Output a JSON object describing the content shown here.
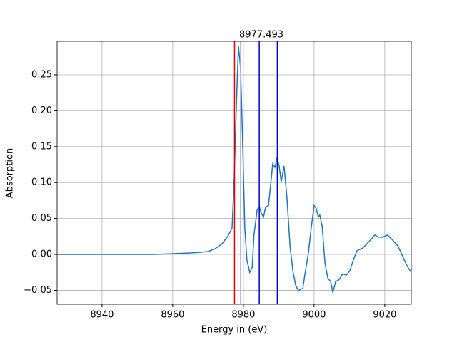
{
  "chart_data": {
    "type": "line",
    "title": "8977.493",
    "x_label": "Energy in (eV)",
    "y_label": "Absorption",
    "series": [
      {
        "color": "#1f77b4",
        "x": [
          8927.3,
          8935,
          8940,
          8945,
          8950,
          8955,
          8960,
          8965,
          8968,
          8970,
          8972,
          8974,
          8975.8,
          8976.8,
          8977.4,
          8978.0,
          8978.6,
          8979.2,
          8979.8,
          8980.4,
          8981.0,
          8981.8,
          8982.5,
          8983.0,
          8983.9,
          8984.5,
          8985.1,
          8985.7,
          8986.3,
          8987.1,
          8987.7,
          8988.3,
          8988.9,
          8989.5,
          8990.1,
          8990.7,
          8991.5,
          8992.3,
          8993.2,
          8994.0,
          8994.8,
          8995.6,
          8996.2,
          8996.8,
          8997.4,
          8998.4,
          8999.2,
          9000.0,
          9000.6,
          9001.2,
          9001.6,
          9002.3,
          9003.1,
          9003.9,
          9004.7,
          9005.3,
          9006.1,
          9007.1,
          9008.1,
          9009.1,
          9010.1,
          9011.1,
          9012.1,
          9013.8,
          9015.4,
          9017.2,
          9018.2,
          9019.4,
          9020.8,
          9022.2,
          9023.7,
          9025.1,
          9026.3,
          9027.5
        ],
        "values": [
          0,
          0,
          0,
          0,
          0,
          0,
          0.001,
          0.002,
          0.003,
          0.004,
          0.008,
          0.015,
          0.027,
          0.037,
          0.106,
          0.205,
          0.29,
          0.26,
          0.156,
          0.037,
          -0.008,
          -0.025,
          -0.018,
          0.027,
          0.062,
          0.066,
          0.057,
          0.052,
          0.066,
          0.068,
          0.096,
          0.126,
          0.121,
          0.134,
          0.124,
          0.101,
          0.123,
          0.081,
          0.012,
          -0.023,
          -0.043,
          -0.051,
          -0.048,
          -0.048,
          -0.028,
          0.002,
          0.037,
          0.068,
          0.064,
          0.052,
          0.055,
          0.039,
          -0.013,
          -0.033,
          -0.038,
          -0.053,
          -0.038,
          -0.035,
          -0.027,
          -0.029,
          -0.023,
          -0.008,
          0.005,
          0.009,
          0.017,
          0.027,
          0.024,
          0.024,
          0.027,
          0.02,
          0.012,
          -0.003,
          -0.016,
          -0.025
        ]
      }
    ],
    "vlines": [
      {
        "x": 8977.493,
        "color": "#e00000"
      },
      {
        "x": 8979.2,
        "color": "#b4a8d8"
      },
      {
        "x": 8984.5,
        "color": "#0000cc"
      },
      {
        "x": 8989.6,
        "color": "#0000cc"
      }
    ],
    "xlim": [
      8927.3,
      9027.5
    ],
    "ylim": [
      -0.0694,
      0.2966
    ],
    "xticks": [
      8940,
      8960,
      8980,
      9000,
      9020
    ],
    "yticks": [
      {
        "value": -0.05,
        "label": "−0.05"
      },
      {
        "value": 0,
        "label": "0.00"
      },
      {
        "value": 0.05,
        "label": "0.05"
      },
      {
        "value": 0.1,
        "label": "0.10"
      },
      {
        "value": 0.15,
        "label": "0.15"
      },
      {
        "value": 0.2,
        "label": "0.20"
      },
      {
        "value": 0.25,
        "label": "0.25"
      }
    ],
    "grid": true
  }
}
